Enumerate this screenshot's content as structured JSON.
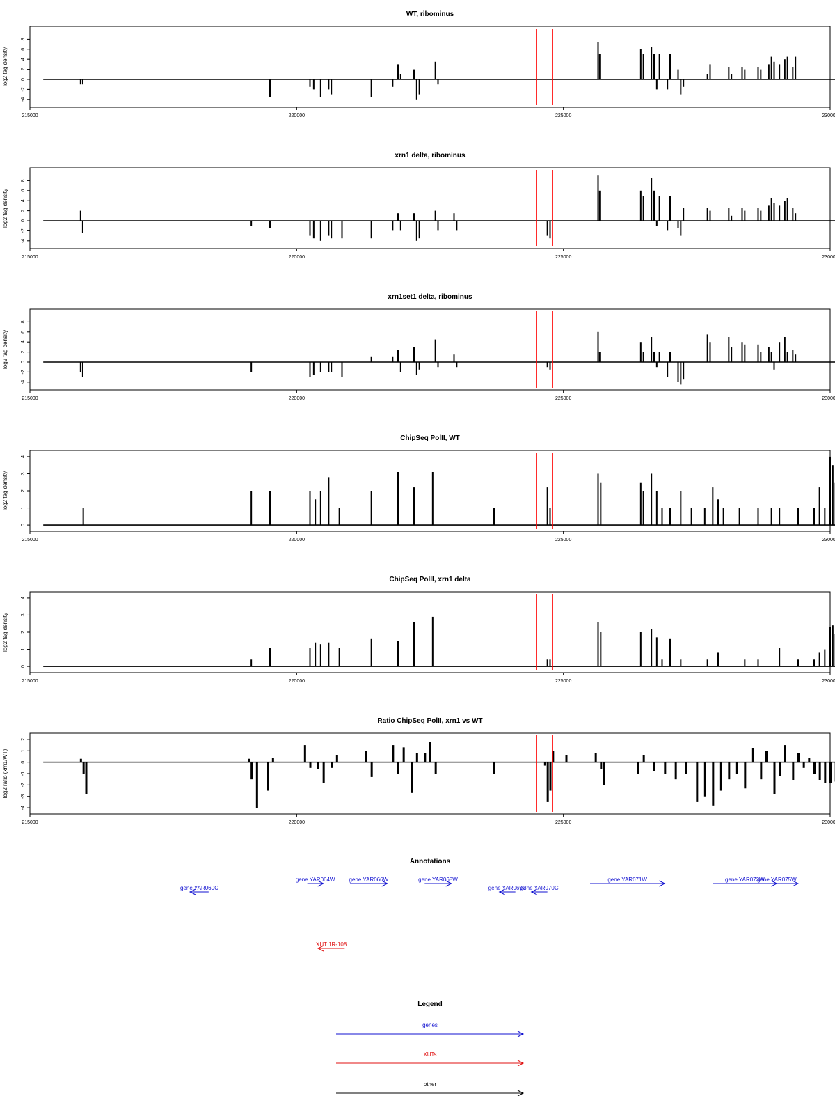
{
  "colors": {
    "gene": "#1010d0",
    "xut": "#e01010",
    "other": "#000000",
    "marker": "#ff0000",
    "signal": "#000000"
  },
  "chart_data": [
    {
      "type": "bar",
      "title": "WT, ribominus",
      "ylabel": "log2 tag density",
      "xlim": [
        215000,
        230000
      ],
      "ylim": [
        -5,
        10
      ],
      "xticks": [
        "215000",
        "220000",
        "225000",
        "230000"
      ],
      "yticks": [
        "-4",
        "-2",
        "0",
        "2",
        "4",
        "6",
        "8"
      ],
      "markers_x": [
        224500,
        224800
      ],
      "bars": [
        [
          215950,
          -1
        ],
        [
          215990,
          -1
        ],
        [
          219500,
          -3.5
        ],
        [
          220250,
          -1.5
        ],
        [
          220320,
          -2
        ],
        [
          220450,
          -3.5
        ],
        [
          220600,
          -2
        ],
        [
          220650,
          -3
        ],
        [
          221400,
          -3.5
        ],
        [
          221800,
          -1.5
        ],
        [
          221900,
          3
        ],
        [
          221950,
          1
        ],
        [
          222200,
          2
        ],
        [
          222250,
          -4
        ],
        [
          222300,
          -3
        ],
        [
          222600,
          3.5
        ],
        [
          222650,
          -1
        ],
        [
          225650,
          7.5
        ],
        [
          225680,
          5
        ],
        [
          226450,
          6
        ],
        [
          226500,
          5
        ],
        [
          226650,
          6.5
        ],
        [
          226700,
          5
        ],
        [
          226750,
          -2
        ],
        [
          226800,
          5
        ],
        [
          226950,
          -2
        ],
        [
          227000,
          5
        ],
        [
          227150,
          2
        ],
        [
          227200,
          -3
        ],
        [
          227250,
          -1.5
        ],
        [
          227700,
          1
        ],
        [
          227750,
          3
        ],
        [
          228100,
          2.5
        ],
        [
          228150,
          1
        ],
        [
          228350,
          2.5
        ],
        [
          228400,
          2
        ],
        [
          228650,
          2.5
        ],
        [
          228700,
          2
        ],
        [
          228850,
          3
        ],
        [
          228900,
          4.5
        ],
        [
          228950,
          3.5
        ],
        [
          229050,
          3
        ],
        [
          229150,
          4
        ],
        [
          229200,
          4.5
        ],
        [
          229300,
          2.5
        ],
        [
          229350,
          4.5
        ]
      ]
    },
    {
      "type": "bar",
      "title": "xrn1 delta, ribominus",
      "ylabel": "log2 tag density",
      "xlim": [
        215000,
        230000
      ],
      "ylim": [
        -5,
        10
      ],
      "xticks": [
        "215000",
        "220000",
        "225000",
        "230000"
      ],
      "yticks": [
        "-4",
        "-2",
        "0",
        "2",
        "4",
        "6",
        "8"
      ],
      "markers_x": [
        224500,
        224800
      ],
      "bars": [
        [
          215950,
          2
        ],
        [
          215990,
          -2.5
        ],
        [
          219150,
          -1
        ],
        [
          219500,
          -1.5
        ],
        [
          220250,
          -3
        ],
        [
          220320,
          -3.5
        ],
        [
          220450,
          -4
        ],
        [
          220600,
          -3
        ],
        [
          220650,
          -3.5
        ],
        [
          220850,
          -3.5
        ],
        [
          221400,
          -3.5
        ],
        [
          221800,
          -2
        ],
        [
          221900,
          1.5
        ],
        [
          221950,
          -2
        ],
        [
          222200,
          1.5
        ],
        [
          222250,
          -4
        ],
        [
          222300,
          -3.5
        ],
        [
          222600,
          2
        ],
        [
          222650,
          -2
        ],
        [
          222950,
          1.5
        ],
        [
          223000,
          -2
        ],
        [
          224700,
          -3
        ],
        [
          224750,
          -3.5
        ],
        [
          225650,
          9
        ],
        [
          225680,
          6
        ],
        [
          226450,
          6
        ],
        [
          226500,
          5
        ],
        [
          226650,
          8.5
        ],
        [
          226700,
          6
        ],
        [
          226750,
          -1
        ],
        [
          226800,
          5
        ],
        [
          226950,
          -2
        ],
        [
          227000,
          5
        ],
        [
          227150,
          -1.5
        ],
        [
          227200,
          -3
        ],
        [
          227250,
          2.5
        ],
        [
          227700,
          2.5
        ],
        [
          227750,
          2
        ],
        [
          228100,
          2.5
        ],
        [
          228150,
          1
        ],
        [
          228350,
          2.5
        ],
        [
          228400,
          2
        ],
        [
          228650,
          2.5
        ],
        [
          228700,
          2
        ],
        [
          228850,
          3
        ],
        [
          228900,
          4.5
        ],
        [
          228950,
          3.5
        ],
        [
          229050,
          3
        ],
        [
          229150,
          4
        ],
        [
          229200,
          4.5
        ],
        [
          229300,
          2.5
        ],
        [
          229350,
          1.5
        ]
      ]
    },
    {
      "type": "bar",
      "title": "xrn1set1 delta, ribominus",
      "ylabel": "log2 tag density",
      "xlim": [
        215000,
        230000
      ],
      "ylim": [
        -5,
        10
      ],
      "xticks": [
        "215000",
        "220000",
        "225000",
        "230000"
      ],
      "yticks": [
        "-4",
        "-2",
        "0",
        "2",
        "4",
        "6",
        "8"
      ],
      "markers_x": [
        224500,
        224800
      ],
      "bars": [
        [
          215950,
          -2
        ],
        [
          215990,
          -3
        ],
        [
          219150,
          -2
        ],
        [
          220250,
          -3
        ],
        [
          220320,
          -2.5
        ],
        [
          220450,
          -2
        ],
        [
          220600,
          -2
        ],
        [
          220650,
          -2
        ],
        [
          220850,
          -3
        ],
        [
          221400,
          1
        ],
        [
          221800,
          1
        ],
        [
          221900,
          2.5
        ],
        [
          221950,
          -2
        ],
        [
          222200,
          3
        ],
        [
          222250,
          -2.5
        ],
        [
          222300,
          -1.5
        ],
        [
          222600,
          4.5
        ],
        [
          222650,
          -1
        ],
        [
          222950,
          1.5
        ],
        [
          223000,
          -1
        ],
        [
          224700,
          -1
        ],
        [
          224750,
          -1.5
        ],
        [
          225650,
          6
        ],
        [
          225680,
          2
        ],
        [
          226450,
          4
        ],
        [
          226500,
          2
        ],
        [
          226650,
          5
        ],
        [
          226700,
          2
        ],
        [
          226750,
          -1
        ],
        [
          226800,
          2
        ],
        [
          226950,
          -3
        ],
        [
          227000,
          2
        ],
        [
          227150,
          -4
        ],
        [
          227200,
          -4.5
        ],
        [
          227250,
          -3.5
        ],
        [
          227700,
          5.5
        ],
        [
          227750,
          4
        ],
        [
          228100,
          5
        ],
        [
          228150,
          3
        ],
        [
          228350,
          4
        ],
        [
          228400,
          3.5
        ],
        [
          228650,
          3.5
        ],
        [
          228700,
          2
        ],
        [
          228850,
          3
        ],
        [
          228900,
          2
        ],
        [
          228950,
          -1.5
        ],
        [
          229050,
          4
        ],
        [
          229150,
          5
        ],
        [
          229200,
          2
        ],
        [
          229300,
          2.5
        ],
        [
          229350,
          1.5
        ]
      ]
    },
    {
      "type": "bar",
      "title": "ChipSeq PolII, WT",
      "ylabel": "log2 tag density",
      "xlim": [
        215000,
        230000
      ],
      "ylim": [
        -0.2,
        4.2
      ],
      "xticks": [
        "215000",
        "220000",
        "225000",
        "230000"
      ],
      "yticks": [
        "0",
        "1",
        "2",
        "3",
        "4"
      ],
      "markers_x": [
        224500,
        224800
      ],
      "bars": [
        [
          216000,
          1
        ],
        [
          219150,
          2
        ],
        [
          219500,
          2
        ],
        [
          220250,
          2
        ],
        [
          220350,
          1.5
        ],
        [
          220450,
          2
        ],
        [
          220600,
          2.8
        ],
        [
          220800,
          1
        ],
        [
          221400,
          2
        ],
        [
          221900,
          3.1
        ],
        [
          222200,
          2.2
        ],
        [
          222550,
          3.1
        ],
        [
          223700,
          1
        ],
        [
          224700,
          2.2
        ],
        [
          224750,
          1
        ],
        [
          225650,
          3
        ],
        [
          225700,
          2.5
        ],
        [
          226450,
          2.5
        ],
        [
          226500,
          2
        ],
        [
          226650,
          3
        ],
        [
          226750,
          2
        ],
        [
          226850,
          1
        ],
        [
          227000,
          1
        ],
        [
          227200,
          2
        ],
        [
          227400,
          1
        ],
        [
          227650,
          1
        ],
        [
          227800,
          2.2
        ],
        [
          227900,
          1.5
        ],
        [
          228000,
          1
        ],
        [
          228300,
          1
        ],
        [
          228650,
          1
        ],
        [
          228900,
          1
        ],
        [
          229050,
          1
        ],
        [
          229400,
          1
        ],
        [
          229700,
          1
        ],
        [
          229800,
          2.2
        ],
        [
          229900,
          1
        ],
        [
          230000,
          4
        ],
        [
          230050,
          3.5
        ],
        [
          230100,
          2.5
        ]
      ]
    },
    {
      "type": "bar",
      "title": "ChipSeq PolII, xrn1 delta",
      "ylabel": "log2 tag density",
      "xlim": [
        215000,
        230000
      ],
      "ylim": [
        -0.2,
        4.2
      ],
      "xticks": [
        "215000",
        "220000",
        "225000",
        "230000"
      ],
      "yticks": [
        "0",
        "1",
        "2",
        "3",
        "4"
      ],
      "markers_x": [
        224500,
        224800
      ],
      "bars": [
        [
          219150,
          0.4
        ],
        [
          219500,
          1.1
        ],
        [
          220250,
          1.1
        ],
        [
          220350,
          1.4
        ],
        [
          220450,
          1.3
        ],
        [
          220600,
          1.4
        ],
        [
          220800,
          1.1
        ],
        [
          221400,
          1.6
        ],
        [
          221900,
          1.5
        ],
        [
          222200,
          2.6
        ],
        [
          222550,
          2.9
        ],
        [
          224700,
          0.4
        ],
        [
          224750,
          0.4
        ],
        [
          225650,
          2.6
        ],
        [
          225700,
          2
        ],
        [
          226450,
          2
        ],
        [
          226650,
          2.2
        ],
        [
          226750,
          1.7
        ],
        [
          226850,
          0.4
        ],
        [
          227000,
          1.6
        ],
        [
          227200,
          0.4
        ],
        [
          227700,
          0.4
        ],
        [
          227900,
          0.8
        ],
        [
          228400,
          0.4
        ],
        [
          228650,
          0.4
        ],
        [
          229050,
          1.1
        ],
        [
          229400,
          0.4
        ],
        [
          229700,
          0.4
        ],
        [
          229800,
          0.8
        ],
        [
          229900,
          1
        ],
        [
          230000,
          2.3
        ],
        [
          230050,
          2.4
        ],
        [
          230100,
          1.9
        ]
      ]
    },
    {
      "type": "bar",
      "title": "Ratio ChipSeq PolII, xrn1 vs WT",
      "ylabel": "log2 ratio (xrn1/WT)",
      "xlim": [
        215000,
        230000
      ],
      "ylim": [
        -4.3,
        2.3
      ],
      "xticks": [
        "215000",
        "220000",
        "225000",
        "230000"
      ],
      "yticks": [
        "-4",
        "-3",
        "-2",
        "-1",
        "0",
        "1",
        "2"
      ],
      "markers_x": [
        224500,
        224800
      ],
      "bars": [
        [
          215950,
          0.3
        ],
        [
          216000,
          -1
        ],
        [
          216050,
          -2.8
        ],
        [
          219100,
          0.3
        ],
        [
          219150,
          -1.5
        ],
        [
          219250,
          -4
        ],
        [
          219450,
          -2.5
        ],
        [
          219550,
          0.4
        ],
        [
          220150,
          1.5
        ],
        [
          220250,
          -0.5
        ],
        [
          220400,
          -0.6
        ],
        [
          220500,
          -1.8
        ],
        [
          220650,
          -0.5
        ],
        [
          220750,
          0.6
        ],
        [
          221300,
          1
        ],
        [
          221400,
          -1.3
        ],
        [
          221800,
          1.5
        ],
        [
          221900,
          -1
        ],
        [
          222000,
          1.3
        ],
        [
          222150,
          -2.7
        ],
        [
          222250,
          0.8
        ],
        [
          222400,
          0.8
        ],
        [
          222500,
          1.8
        ],
        [
          222600,
          -1
        ],
        [
          223700,
          -1
        ],
        [
          224650,
          -0.3
        ],
        [
          224700,
          -3.5
        ],
        [
          224750,
          -2.5
        ],
        [
          224800,
          1
        ],
        [
          225050,
          0.6
        ],
        [
          225600,
          0.8
        ],
        [
          225700,
          -0.6
        ],
        [
          225750,
          -2
        ],
        [
          226400,
          -1
        ],
        [
          226500,
          0.6
        ],
        [
          226700,
          -0.8
        ],
        [
          226900,
          -1
        ],
        [
          227100,
          -1.5
        ],
        [
          227300,
          -1
        ],
        [
          227500,
          -3.5
        ],
        [
          227650,
          -3
        ],
        [
          227800,
          -3.8
        ],
        [
          227950,
          -2.5
        ],
        [
          228100,
          -1.5
        ],
        [
          228250,
          -1
        ],
        [
          228400,
          -2.3
        ],
        [
          228550,
          1.2
        ],
        [
          228700,
          -1.5
        ],
        [
          228800,
          1
        ],
        [
          228950,
          -2.8
        ],
        [
          229050,
          -1.2
        ],
        [
          229150,
          1.5
        ],
        [
          229300,
          -1.6
        ],
        [
          229400,
          0.8
        ],
        [
          229500,
          -0.5
        ],
        [
          229600,
          0.4
        ],
        [
          229700,
          -1
        ],
        [
          229800,
          -1.6
        ],
        [
          229900,
          -1.8
        ],
        [
          230000,
          -1.8
        ],
        [
          230100,
          -1.7
        ]
      ]
    }
  ],
  "annotations": {
    "title": "Annotations",
    "items": [
      {
        "label": "gene YAR060C",
        "type": "gene",
        "start": 218350,
        "end": 218000,
        "row": 1
      },
      {
        "label": "gene YAR064W",
        "type": "gene",
        "start": 220200,
        "end": 220500,
        "row": 0
      },
      {
        "label": "gene YAR066W",
        "type": "gene",
        "start": 221000,
        "end": 221700,
        "row": 0
      },
      {
        "label": "gene YAR068W",
        "type": "gene",
        "start": 222400,
        "end": 222900,
        "row": 0
      },
      {
        "label": "gene YAR069C",
        "type": "gene",
        "start": 224100,
        "end": 223800,
        "row": 1
      },
      {
        "label": "gene YAR070C",
        "type": "gene",
        "start": 224700,
        "end": 224400,
        "row": 1
      },
      {
        "label": "gene YAR071W",
        "type": "gene",
        "start": 225500,
        "end": 226900,
        "row": 0
      },
      {
        "label": "gene YAR073W",
        "type": "gene",
        "start": 227800,
        "end": 229000,
        "row": 0
      },
      {
        "label": "gene YAR075W",
        "type": "gene",
        "start": 228600,
        "end": 229400,
        "row": 0
      },
      {
        "label": "XUT 1R-108",
        "type": "xut",
        "start": 220900,
        "end": 220400,
        "row": 2
      }
    ]
  },
  "legend": {
    "title": "Legend",
    "entries": [
      {
        "label": "genes",
        "type": "gene"
      },
      {
        "label": "XUTs",
        "type": "xut"
      },
      {
        "label": "other",
        "type": "other"
      }
    ]
  }
}
